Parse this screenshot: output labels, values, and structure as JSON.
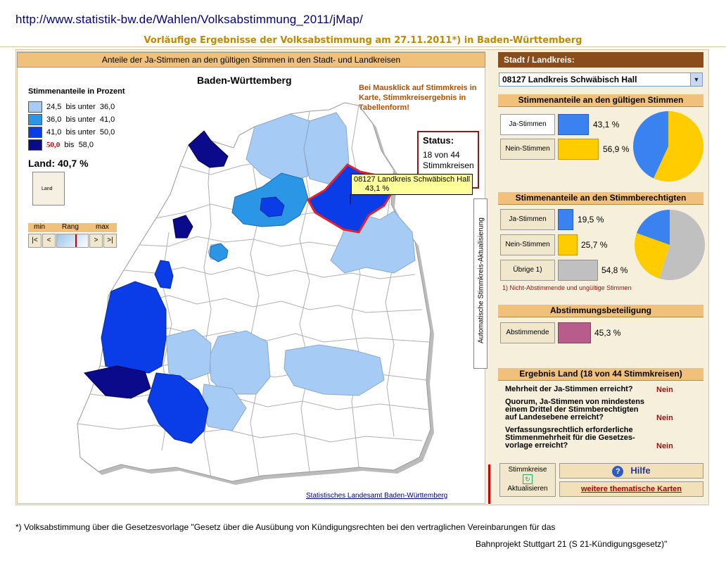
{
  "url": "http://www.statistik-bw.de/Wahlen/Volksabstimmung_2011/jMap/",
  "subtitle": "Vorläufige Ergebnisse der Volksabstimmung am 27.11.2011*) in Baden-Württemberg",
  "map": {
    "header": "Anteile der Ja-Stimmen an den gültigen Stimmen in den Stadt- und Landkreisen",
    "title": "Baden-Württemberg",
    "legend_title": "Stimmenanteile in Prozent",
    "legend": [
      {
        "from": "24,5",
        "sep": "bis unter",
        "to": "36,0",
        "color": "#a6cbf4"
      },
      {
        "from": "36,0",
        "sep": "bis unter",
        "to": "41,0",
        "color": "#2b95e6"
      },
      {
        "from": "41,0",
        "sep": "bis unter",
        "to": "50,0",
        "color": "#0a3de8"
      },
      {
        "from": "50,0",
        "sep": "bis",
        "to": "58,0",
        "color": "#0a0a8a"
      }
    ],
    "land_label": "Land:  40,7 %",
    "land_icon_text": "Land",
    "rang": {
      "min": "min",
      "rang": "Rang",
      "max": "max",
      "btn_first": "|<",
      "btn_prev": "<",
      "btn_next": ">",
      "btn_last": ">|"
    },
    "note": "Bei Mausklick auf Stimmkreis in Karte, Stimmkreisergebnis in Tabellenform!",
    "status": {
      "title": "Status:",
      "line1": "18 von 44",
      "line2": "Stimmkreisen"
    },
    "tooltip": {
      "line1": "08127 Landkreis Schwäbisch Hall",
      "line2": "43,1 %"
    },
    "vertical_label": "Automatische Stimmkreis-Aktualisierung",
    "source": "Statistisches Landesamt Baden-Württemberg"
  },
  "right": {
    "header": "Stadt / Landkreis:",
    "selected_kreis": "08127 Landkreis Schwäbisch Hall",
    "sec1": {
      "title": "Stimmenanteile an den gültigen Stimmen",
      "ja_label": "Ja-Stimmen",
      "ja_pct": "43,1 %",
      "ja_value": 43.1,
      "nein_label": "Nein-Stimmen",
      "nein_pct": "56,9 %",
      "nein_value": 56.9
    },
    "sec2": {
      "title": "Stimmenanteile an den Stimmberechtigten",
      "ja_label": "Ja-Stimmen",
      "ja_pct": "19,5 %",
      "ja_value": 19.5,
      "nein_label": "Nein-Stimmen",
      "nein_pct": "25,7 %",
      "nein_value": 25.7,
      "uebrige_label": "Übrige 1)",
      "uebrige_pct": "54,8 %",
      "uebrige_value": 54.8,
      "footnote": "1) Nicht-Abstimmende und ungültige Stimmen"
    },
    "sec3": {
      "title": "Abstimmungsbeteiligung",
      "label": "Abstimmende",
      "pct": "45,3 %",
      "value": 45.3
    },
    "sec4": {
      "title": "Ergebnis Land  (18 von 44 Stimmkreisen)",
      "q1": "Mehrheit der Ja-Stimmen erreicht?",
      "q1_answer": "Nein",
      "q2_l1": "Quorum, Ja-Stimmen von mindestens",
      "q2_l2": "einem Drittel der Stimmberechtigten",
      "q2_l3": "auf Landesebene erreicht?",
      "q2_answer": "Nein",
      "q3_l1": "Verfassungsrechtlich erforderliche",
      "q3_l2": "Stimmenmehrheit für die Gesetzes-",
      "q3_l3": "vorlage erreicht?",
      "q3_answer": "Nein"
    },
    "btn_akt_l1": "Stimmkreise",
    "btn_akt_l2": "Aktualisieren",
    "btn_hilfe": "Hilfe",
    "btn_karten": "weitere thematische Karten"
  },
  "footnote_line1": "*) Volksabstimmung über die Gesetzesvorlage \"Gesetz über die Ausübung von Kündigungsrechten bei den vertraglichen Vereinbarungen für das",
  "footnote_line2": "Bahnprojekt Stuttgart 21 (S 21-Kündigungsgesetz)\"",
  "colors": {
    "ja": "#3a82f0",
    "nein": "#ffcc00",
    "uebrige": "#c0c0c0",
    "beteiligung": "#b85c8c",
    "highlight": "#e8202a"
  }
}
